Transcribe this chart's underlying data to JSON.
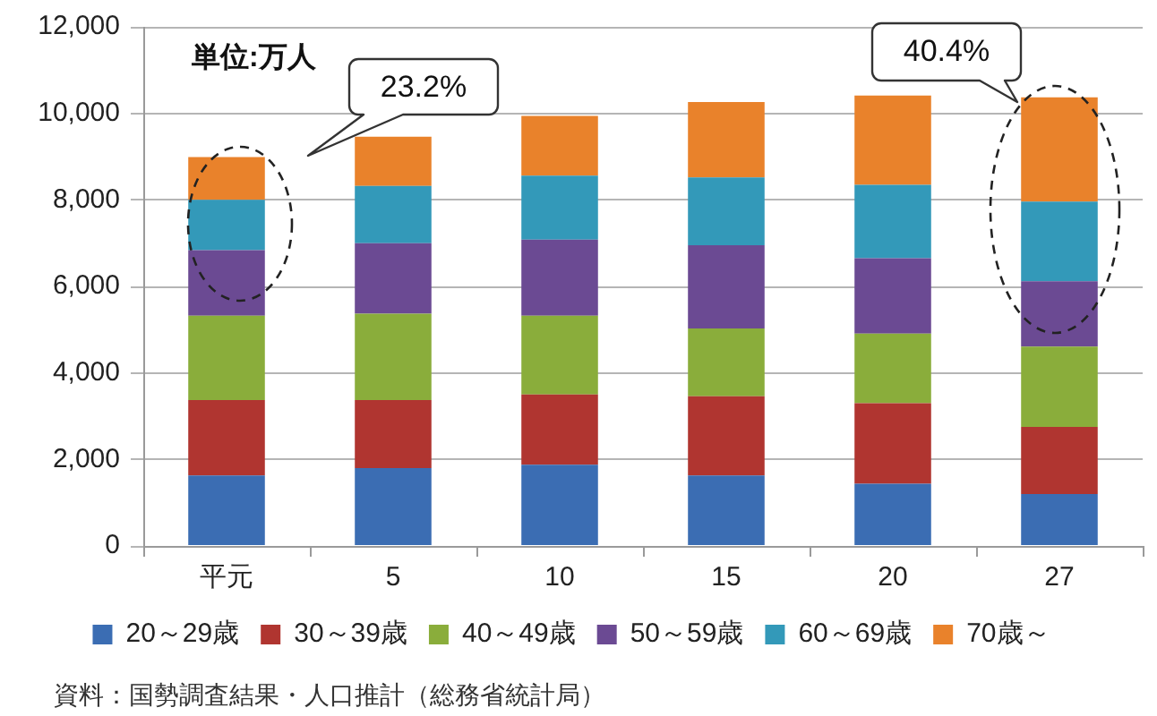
{
  "chart_data": {
    "type": "bar",
    "stacked": true,
    "categories": [
      "平元",
      "5",
      "10",
      "15",
      "20",
      "27"
    ],
    "series": [
      {
        "name": "20～29歳",
        "color": "#3b6db3",
        "values": [
          1630,
          1800,
          1880,
          1630,
          1440,
          1200
        ]
      },
      {
        "name": "30～39歳",
        "color": "#b03530",
        "values": [
          1740,
          1570,
          1620,
          1830,
          1860,
          1550
        ]
      },
      {
        "name": "40～49歳",
        "color": "#8aad3b",
        "values": [
          1950,
          2000,
          1820,
          1570,
          1610,
          1860
        ]
      },
      {
        "name": "50～59歳",
        "color": "#6b4a93",
        "values": [
          1520,
          1630,
          1760,
          1920,
          1740,
          1510
        ]
      },
      {
        "name": "60～69歳",
        "color": "#3399b9",
        "values": [
          1160,
          1320,
          1480,
          1570,
          1700,
          1840
        ]
      },
      {
        "name": "70歳～",
        "color": "#e9822b",
        "values": [
          990,
          1140,
          1380,
          1740,
          2060,
          2410
        ]
      }
    ],
    "ylim": [
      0,
      12000
    ],
    "yticks": [
      0,
      {
        "value": 2000,
        "label": "2,000"
      },
      {
        "value": 4000,
        "label": "4,000"
      },
      {
        "value": 6000,
        "label": "6,000"
      },
      {
        "value": 8000,
        "label": "8,000"
      },
      {
        "value": 10000,
        "label": "10,000"
      },
      {
        "value": 12000,
        "label": "12,000"
      }
    ],
    "grid": "y",
    "legend": "bottom",
    "annotations": [
      "単位:万人",
      "23.2%",
      "40.4%",
      "資料：国勢調査結果・人口推計（総務省統計局）"
    ]
  }
}
